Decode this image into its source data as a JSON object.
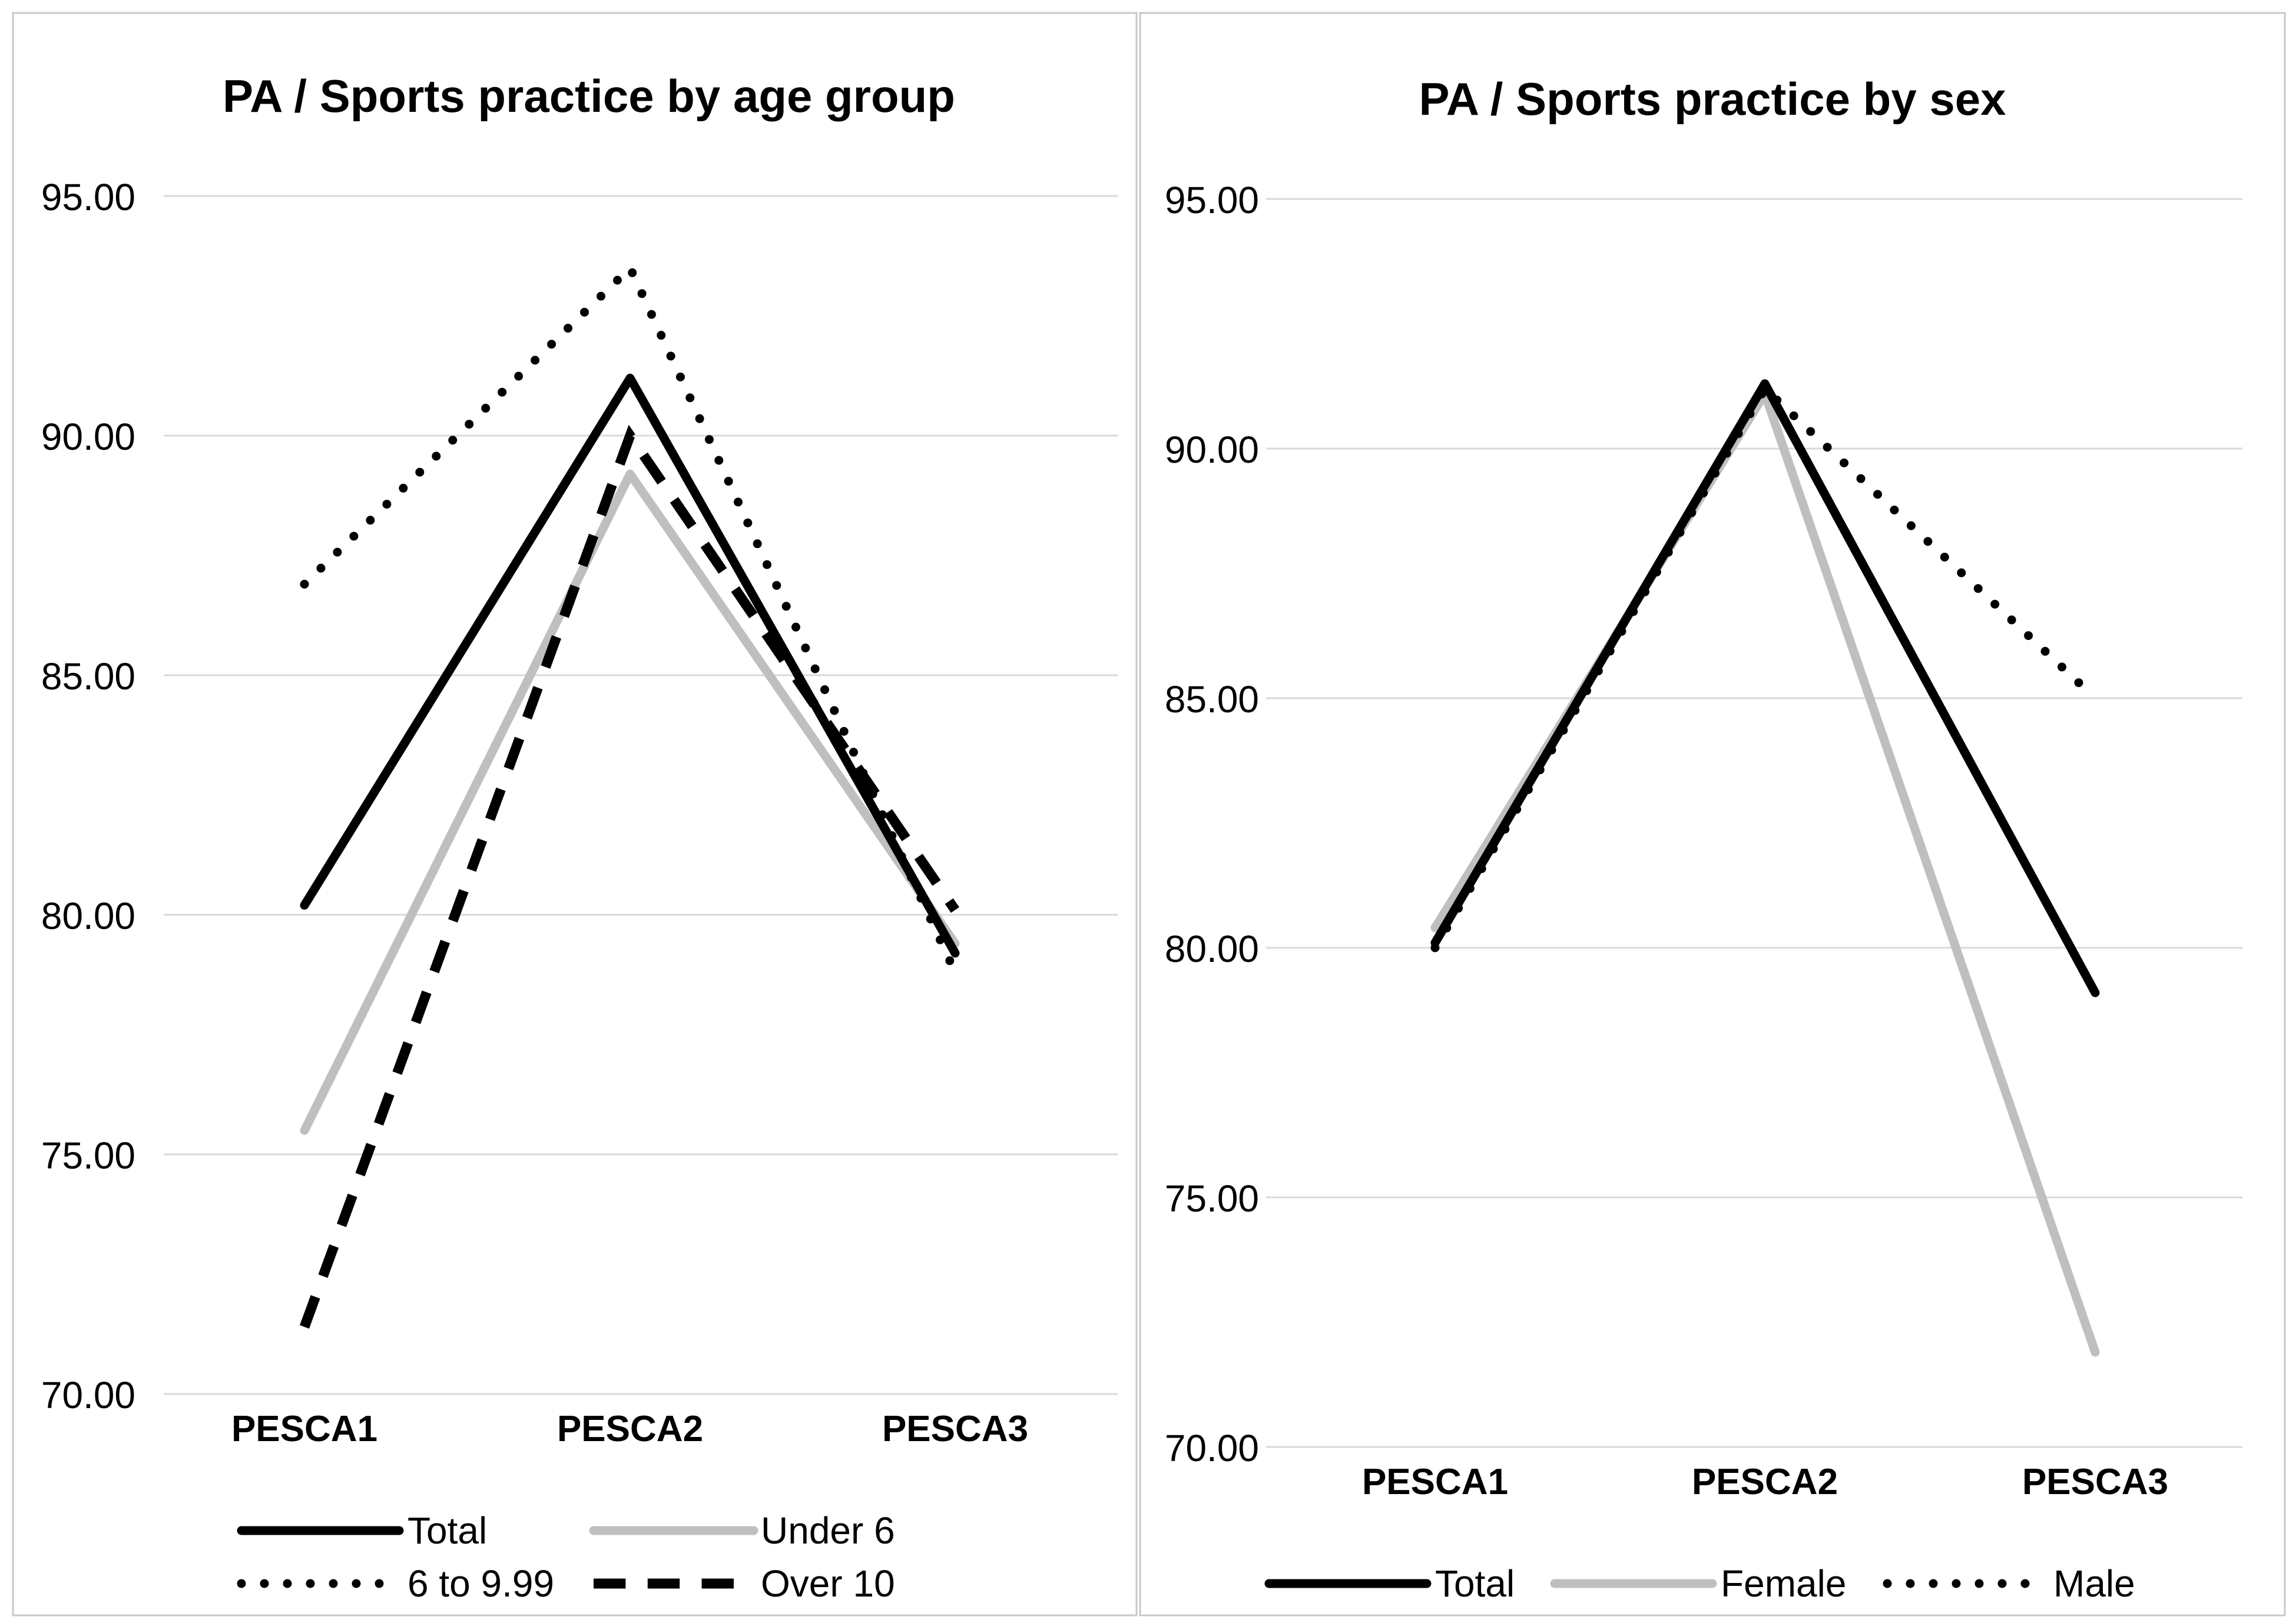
{
  "colors": {
    "total": "#000000",
    "gray": "#bfbfbf",
    "grid": "#d9d9d9",
    "frame": "#c8c8c8"
  },
  "chart_data": [
    {
      "type": "line",
      "title": "PA / Sports practice by age group",
      "categories": [
        "PESCA1",
        "PESCA2",
        "PESCA3"
      ],
      "ylim": [
        70,
        95
      ],
      "yticks": [
        "70.00",
        "75.00",
        "80.00",
        "85.00",
        "90.00",
        "95.00"
      ],
      "grid": true,
      "legend_position": "bottom",
      "series": [
        {
          "name": "Total",
          "values": [
            80.2,
            91.2,
            79.2
          ],
          "style": "solid",
          "color": "#000000"
        },
        {
          "name": "Under 6",
          "values": [
            75.5,
            89.2,
            79.4
          ],
          "style": "solid",
          "color": "#bfbfbf"
        },
        {
          "name": "6 to 9.99",
          "values": [
            86.9,
            93.5,
            78.8
          ],
          "style": "dotted",
          "color": "#000000"
        },
        {
          "name": "Over 10",
          "values": [
            71.4,
            90.0,
            80.1
          ],
          "style": "dashed",
          "color": "#000000"
        }
      ]
    },
    {
      "type": "line",
      "title": "PA / Sports practice by sex",
      "categories": [
        "PESCA1",
        "PESCA2",
        "PESCA3"
      ],
      "ylim": [
        70,
        95
      ],
      "yticks": [
        "70.00",
        "75.00",
        "80.00",
        "85.00",
        "90.00",
        "95.00"
      ],
      "grid": true,
      "legend_position": "bottom",
      "series": [
        {
          "name": "Total",
          "values": [
            80.1,
            91.3,
            79.1
          ],
          "style": "solid",
          "color": "#000000"
        },
        {
          "name": "Female",
          "values": [
            80.4,
            91.1,
            71.9
          ],
          "style": "solid",
          "color": "#bfbfbf"
        },
        {
          "name": "Male",
          "values": [
            80.0,
            91.2,
            85.0
          ],
          "style": "dotted",
          "color": "#000000"
        }
      ]
    }
  ]
}
